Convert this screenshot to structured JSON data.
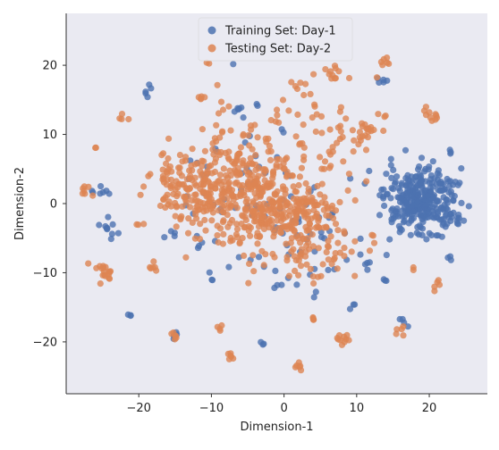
{
  "chart_data": {
    "type": "scatter",
    "title": "",
    "xlabel": "Dimension-1",
    "ylabel": "Dimension-2",
    "xlim": [
      -30,
      28
    ],
    "ylim": [
      -27.5,
      27.5
    ],
    "xticks": [
      -20,
      -10,
      0,
      10,
      20
    ],
    "yticks": [
      -20,
      -10,
      0,
      10,
      20
    ],
    "grid": false,
    "background_color": "#eaeaf2",
    "legend_position": "upper-center",
    "series": [
      {
        "name": "Training Set: Day-1",
        "color": "#4c72b0",
        "clusters": [
          {
            "x": 19.0,
            "y": 0.0,
            "r": 4.5,
            "n": 320
          },
          {
            "x": -5.0,
            "y": 2.0,
            "r": 10.0,
            "n": 70
          },
          {
            "x": 5.0,
            "y": -8.0,
            "r": 6.0,
            "n": 22
          },
          {
            "x": -24.0,
            "y": -3.5,
            "r": 1.5,
            "n": 10
          },
          {
            "x": -25.0,
            "y": 1.5,
            "r": 1.2,
            "n": 7
          },
          {
            "x": -18.5,
            "y": 16.5,
            "r": 0.8,
            "n": 5
          },
          {
            "x": 13.5,
            "y": 17.5,
            "r": 0.8,
            "n": 5
          },
          {
            "x": -6.0,
            "y": 13.5,
            "r": 0.8,
            "n": 4
          },
          {
            "x": -21.0,
            "y": -16.0,
            "r": 0.5,
            "n": 3
          },
          {
            "x": -15.0,
            "y": -19.0,
            "r": 0.6,
            "n": 4
          },
          {
            "x": 9.5,
            "y": -15.0,
            "r": 0.6,
            "n": 3
          },
          {
            "x": 4.0,
            "y": -13.0,
            "r": 0.5,
            "n": 2
          },
          {
            "x": 16.5,
            "y": -17.0,
            "r": 0.6,
            "n": 4
          },
          {
            "x": 14.0,
            "y": -11.0,
            "r": 0.5,
            "n": 3
          },
          {
            "x": 23.0,
            "y": 7.5,
            "r": 0.6,
            "n": 3
          },
          {
            "x": 23.0,
            "y": -8.0,
            "r": 0.6,
            "n": 3
          },
          {
            "x": -3.5,
            "y": 14.0,
            "r": 0.5,
            "n": 2
          },
          {
            "x": -16.0,
            "y": -4.5,
            "r": 1.0,
            "n": 4
          },
          {
            "x": -1.0,
            "y": -12.0,
            "r": 0.6,
            "n": 3
          },
          {
            "x": -3.0,
            "y": -20.0,
            "r": 0.6,
            "n": 3
          },
          {
            "x": 11.5,
            "y": -9.0,
            "r": 0.6,
            "n": 3
          },
          {
            "x": -10.0,
            "y": -10.5,
            "r": 0.6,
            "n": 3
          },
          {
            "x": 6.5,
            "y": -1.5,
            "r": 0.6,
            "n": 3
          }
        ]
      },
      {
        "name": "Testing Set: Day-2",
        "color": "#dd8452",
        "clusters": [
          {
            "x": -4.0,
            "y": 0.5,
            "r": 7.5,
            "n": 380
          },
          {
            "x": -12.0,
            "y": 3.0,
            "r": 5.0,
            "n": 150
          },
          {
            "x": 3.0,
            "y": -1.5,
            "r": 4.0,
            "n": 90
          },
          {
            "x": 7.0,
            "y": 10.0,
            "r": 7.0,
            "n": 45
          },
          {
            "x": 4.0,
            "y": -7.0,
            "r": 5.0,
            "n": 40
          },
          {
            "x": -6.0,
            "y": 10.0,
            "r": 6.0,
            "n": 35
          },
          {
            "x": -25.0,
            "y": -10.0,
            "r": 1.5,
            "n": 18
          },
          {
            "x": -27.0,
            "y": 2.0,
            "r": 0.8,
            "n": 7
          },
          {
            "x": 11.0,
            "y": 11.0,
            "r": 1.2,
            "n": 14
          },
          {
            "x": 7.0,
            "y": 19.0,
            "r": 1.0,
            "n": 10
          },
          {
            "x": 14.0,
            "y": 20.5,
            "r": 0.8,
            "n": 6
          },
          {
            "x": 20.0,
            "y": 13.0,
            "r": 1.0,
            "n": 10
          },
          {
            "x": 21.0,
            "y": -12.0,
            "r": 0.8,
            "n": 5
          },
          {
            "x": 8.0,
            "y": -19.5,
            "r": 1.0,
            "n": 10
          },
          {
            "x": 16.0,
            "y": -18.5,
            "r": 0.8,
            "n": 5
          },
          {
            "x": -7.0,
            "y": -22.0,
            "r": 0.8,
            "n": 6
          },
          {
            "x": 2.0,
            "y": -23.5,
            "r": 0.8,
            "n": 6
          },
          {
            "x": -15.0,
            "y": -19.0,
            "r": 0.8,
            "n": 6
          },
          {
            "x": 2.0,
            "y": 17.0,
            "r": 0.8,
            "n": 5
          },
          {
            "x": -11.5,
            "y": 15.5,
            "r": 0.6,
            "n": 4
          },
          {
            "x": -22.5,
            "y": 12.5,
            "r": 0.6,
            "n": 4
          },
          {
            "x": -10.5,
            "y": 20.5,
            "r": 0.5,
            "n": 2
          },
          {
            "x": -26.0,
            "y": 8.0,
            "r": 0.4,
            "n": 2
          },
          {
            "x": 13.5,
            "y": 13.0,
            "r": 0.5,
            "n": 3
          },
          {
            "x": 12.0,
            "y": -5.0,
            "r": 0.6,
            "n": 3
          },
          {
            "x": 17.5,
            "y": -9.5,
            "r": 0.5,
            "n": 2
          },
          {
            "x": -9.0,
            "y": -18.0,
            "r": 0.7,
            "n": 4
          },
          {
            "x": 4.0,
            "y": -17.0,
            "r": 0.7,
            "n": 4
          },
          {
            "x": -18.0,
            "y": -9.0,
            "r": 0.8,
            "n": 6
          },
          {
            "x": -20.0,
            "y": -3.0,
            "r": 0.6,
            "n": 3
          }
        ]
      }
    ]
  }
}
